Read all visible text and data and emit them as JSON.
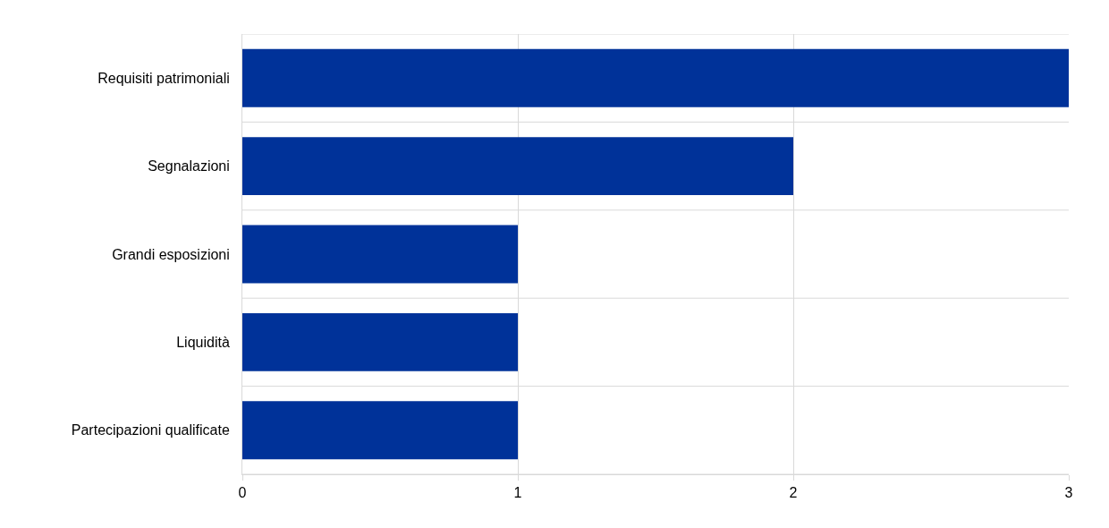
{
  "chart_data": {
    "type": "bar",
    "orientation": "horizontal",
    "categories": [
      "Requisiti patrimoniali",
      "Segnalazioni",
      "Grandi esposizioni",
      "Liquidità",
      "Partecipazioni qualificate"
    ],
    "values": [
      3,
      2,
      1,
      1,
      1
    ],
    "color": "#003299",
    "xlim": [
      0,
      3
    ],
    "xticks": [
      0,
      1,
      2,
      3
    ],
    "grid": true
  }
}
